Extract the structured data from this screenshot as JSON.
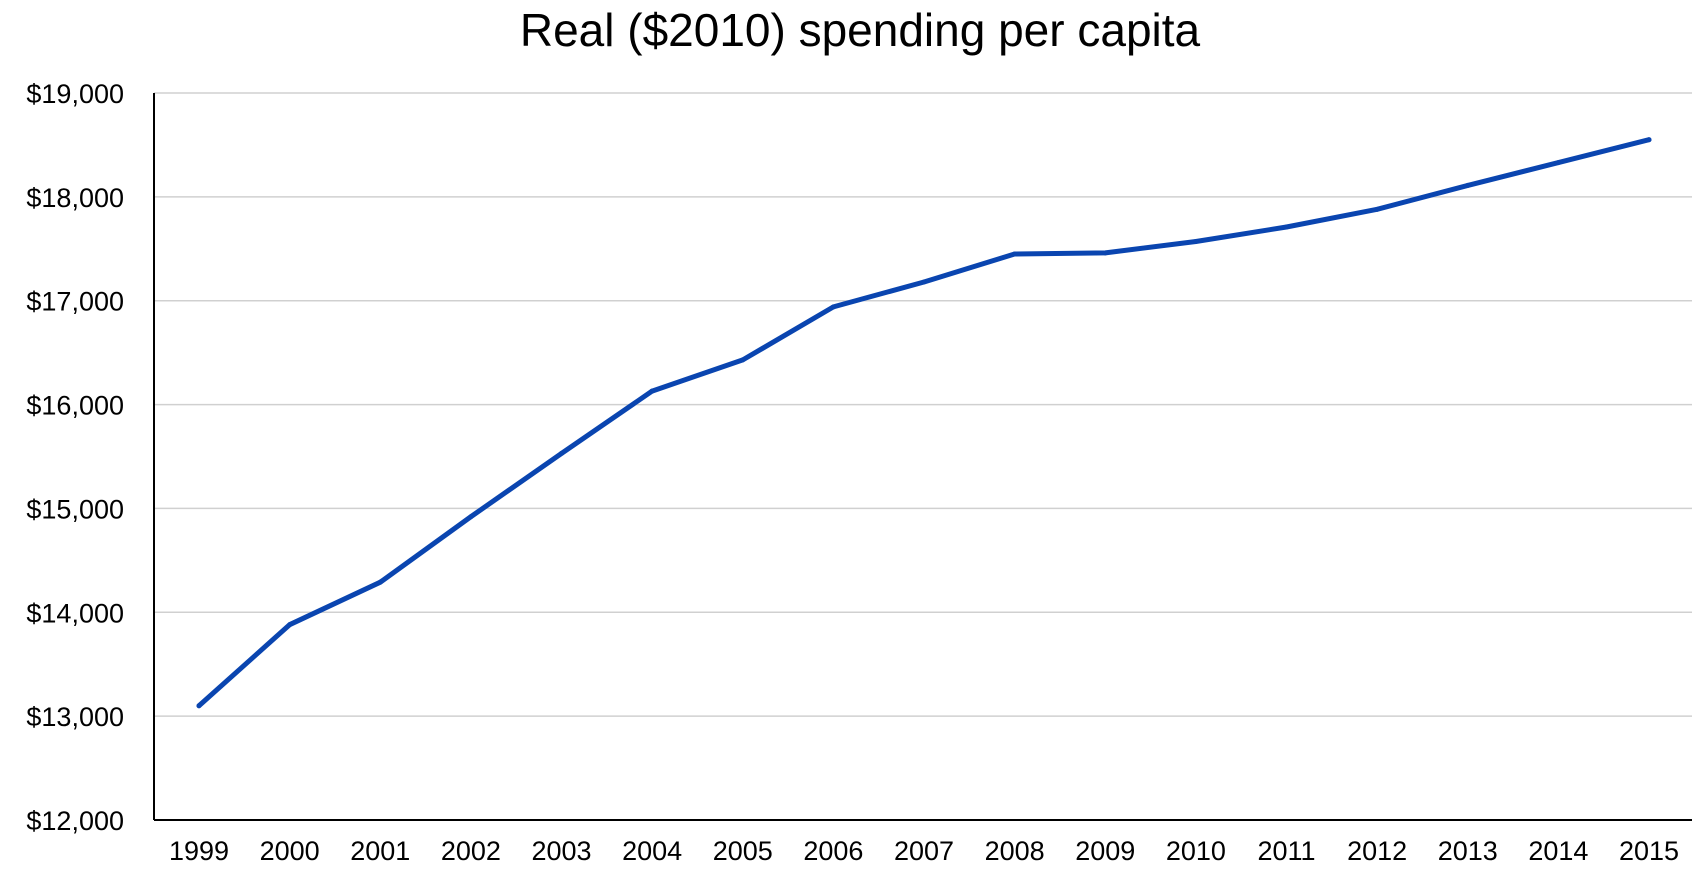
{
  "chart_data": {
    "type": "line",
    "title": "Real ($2010) spending per capita",
    "xlabel": "",
    "ylabel": "",
    "categories": [
      "1999",
      "2000",
      "2001",
      "2002",
      "2003",
      "2004",
      "2005",
      "2006",
      "2007",
      "2008",
      "2009",
      "2010",
      "2011",
      "2012",
      "2013",
      "2014",
      "2015"
    ],
    "series": [
      {
        "values": [
          13100,
          13880,
          14290,
          14920,
          15530,
          16130,
          16430,
          16940,
          17180,
          17450,
          17460,
          17570,
          17710,
          17880,
          18110,
          18330,
          18550
        ],
        "color": "#0a45b0"
      }
    ],
    "ylim": [
      12000,
      19000
    ],
    "yticks": [
      12000,
      13000,
      14000,
      15000,
      16000,
      17000,
      18000,
      19000
    ],
    "ytick_labels": [
      "$12,000",
      "$13,000",
      "$14,000",
      "$15,000",
      "$16,000",
      "$17,000",
      "$18,000",
      "$19,000"
    ],
    "grid": true,
    "legend": "none"
  }
}
